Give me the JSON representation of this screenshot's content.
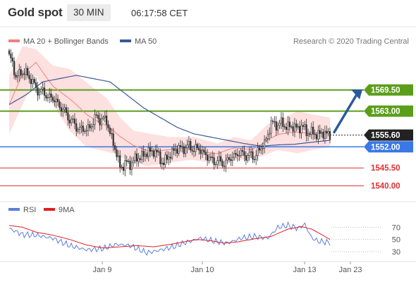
{
  "header": {
    "title": "Gold spot",
    "timeframe": "30 MIN",
    "time": "06:17:58 CET"
  },
  "legend": {
    "ma20_label": "MA 20 + Bollinger Bands",
    "ma50_label": "MA 50",
    "attribution": "Research © 2020 Trading Central"
  },
  "rsi_legend": {
    "rsi_label": "RSI",
    "ma_label": "9MA"
  },
  "colors": {
    "ma20": "#f08080",
    "bollinger_fill": "#fde0e0",
    "ma50": "#3b5998",
    "resistance": "#5a9e1a",
    "support_strong": "#3a78e7",
    "support": "#e03030",
    "current_price": "#222222",
    "arrow": "#2a5a9a",
    "rsi": "#5b7fdb",
    "rsi_ma": "#e02020",
    "candle": "#333333"
  },
  "chart_data": [
    {
      "type": "candlestick",
      "instrument": "Gold spot",
      "x_ticks": [
        "Jan 9",
        "Jan 10",
        "Jan 13",
        "Jan 23"
      ],
      "ylim": [
        1536,
        1582
      ],
      "series": [
        {
          "name": "Gold spot",
          "kind": "candles"
        },
        {
          "name": "MA 20 + Bollinger Bands",
          "kind": "line+band"
        },
        {
          "name": "MA 50",
          "kind": "line"
        }
      ],
      "price_levels": [
        {
          "value": 1569.5,
          "label": "1569.50",
          "role": "resistance"
        },
        {
          "value": 1563.0,
          "label": "1563.00",
          "role": "resistance"
        },
        {
          "value": 1555.6,
          "label": "1555.60",
          "role": "current"
        },
        {
          "value": 1552.0,
          "label": "1552.00",
          "role": "support"
        },
        {
          "value": 1545.5,
          "label": "1545.50",
          "role": "support"
        },
        {
          "value": 1540.0,
          "label": "1540.00",
          "role": "support"
        }
      ],
      "close_anchors": [
        [
          0,
          1580
        ],
        [
          4,
          1574
        ],
        [
          10,
          1575
        ],
        [
          16,
          1570
        ],
        [
          22,
          1568
        ],
        [
          28,
          1566
        ],
        [
          34,
          1562
        ],
        [
          40,
          1558
        ],
        [
          46,
          1557
        ],
        [
          52,
          1561
        ],
        [
          58,
          1560
        ],
        [
          62,
          1553
        ],
        [
          66,
          1546
        ],
        [
          72,
          1547
        ],
        [
          78,
          1549
        ],
        [
          86,
          1551
        ],
        [
          92,
          1547
        ],
        [
          98,
          1551
        ],
        [
          106,
          1552
        ],
        [
          114,
          1551
        ],
        [
          120,
          1548
        ],
        [
          128,
          1547
        ],
        [
          136,
          1550
        ],
        [
          146,
          1549
        ],
        [
          152,
          1553
        ],
        [
          156,
          1559
        ],
        [
          162,
          1559
        ],
        [
          168,
          1558
        ],
        [
          174,
          1558
        ],
        [
          180,
          1556
        ],
        [
          188,
          1556
        ],
        [
          191,
          1556
        ]
      ],
      "bollinger_upper_anchors": [
        [
          0,
          1574
        ],
        [
          8,
          1583
        ],
        [
          16,
          1582
        ],
        [
          26,
          1577
        ],
        [
          36,
          1576
        ],
        [
          48,
          1571
        ],
        [
          58,
          1567
        ],
        [
          66,
          1561
        ],
        [
          74,
          1557
        ],
        [
          84,
          1556
        ],
        [
          96,
          1555
        ],
        [
          110,
          1555
        ],
        [
          124,
          1553
        ],
        [
          134,
          1555
        ],
        [
          144,
          1554
        ],
        [
          154,
          1559
        ],
        [
          164,
          1561
        ],
        [
          172,
          1563
        ],
        [
          180,
          1562
        ],
        [
          191,
          1561
        ]
      ],
      "bollinger_lower_anchors": [
        [
          0,
          1556
        ],
        [
          8,
          1565
        ],
        [
          16,
          1574
        ],
        [
          26,
          1565
        ],
        [
          36,
          1557
        ],
        [
          46,
          1552
        ],
        [
          54,
          1551
        ],
        [
          62,
          1550
        ],
        [
          70,
          1548
        ],
        [
          82,
          1546
        ],
        [
          94,
          1547
        ],
        [
          108,
          1548
        ],
        [
          124,
          1547
        ],
        [
          138,
          1548
        ],
        [
          150,
          1549
        ],
        [
          160,
          1551
        ],
        [
          172,
          1550
        ],
        [
          180,
          1551
        ],
        [
          191,
          1552
        ]
      ],
      "ma50_anchors": [
        [
          0,
          1565
        ],
        [
          10,
          1568
        ],
        [
          20,
          1572
        ],
        [
          30,
          1573
        ],
        [
          40,
          1574
        ],
        [
          50,
          1573
        ],
        [
          60,
          1572
        ],
        [
          70,
          1568
        ],
        [
          80,
          1564
        ],
        [
          90,
          1561
        ],
        [
          100,
          1558
        ],
        [
          110,
          1556
        ],
        [
          120,
          1555
        ],
        [
          130,
          1554
        ],
        [
          140,
          1553
        ],
        [
          150,
          1552.2
        ],
        [
          160,
          1552.6
        ],
        [
          170,
          1552.8
        ],
        [
          180,
          1553.4
        ],
        [
          191,
          1554
        ]
      ]
    },
    {
      "type": "line",
      "name": "RSI",
      "yticks": [
        30,
        50,
        70
      ],
      "ylim": [
        15,
        90
      ],
      "series": [
        {
          "name": "RSI",
          "anchors": [
            [
              0,
              68
            ],
            [
              8,
              58
            ],
            [
              16,
              57
            ],
            [
              26,
              52
            ],
            [
              36,
              40
            ],
            [
              46,
              33
            ],
            [
              56,
              35
            ],
            [
              64,
              42
            ],
            [
              72,
              40
            ],
            [
              82,
              28
            ],
            [
              92,
              34
            ],
            [
              98,
              38
            ],
            [
              106,
              46
            ],
            [
              114,
              52
            ],
            [
              122,
              47
            ],
            [
              130,
              44
            ],
            [
              138,
              52
            ],
            [
              146,
              55
            ],
            [
              154,
              52
            ],
            [
              160,
              70
            ],
            [
              166,
              73
            ],
            [
              172,
              68
            ],
            [
              176,
              75
            ],
            [
              180,
              53
            ],
            [
              184,
              47
            ],
            [
              191,
              45
            ]
          ]
        },
        {
          "name": "9MA",
          "anchors": [
            [
              0,
              73
            ],
            [
              8,
              70
            ],
            [
              16,
              62
            ],
            [
              26,
              57
            ],
            [
              36,
              50
            ],
            [
              46,
              41
            ],
            [
              56,
              36
            ],
            [
              66,
              38
            ],
            [
              76,
              40
            ],
            [
              86,
              38
            ],
            [
              96,
              42
            ],
            [
              104,
              46
            ],
            [
              112,
              50
            ],
            [
              120,
              48
            ],
            [
              128,
              44
            ],
            [
              136,
              46
            ],
            [
              146,
              51
            ],
            [
              156,
              55
            ],
            [
              166,
              67
            ],
            [
              174,
              71
            ],
            [
              180,
              67
            ],
            [
              186,
              58
            ],
            [
              191,
              50
            ]
          ]
        }
      ]
    }
  ]
}
